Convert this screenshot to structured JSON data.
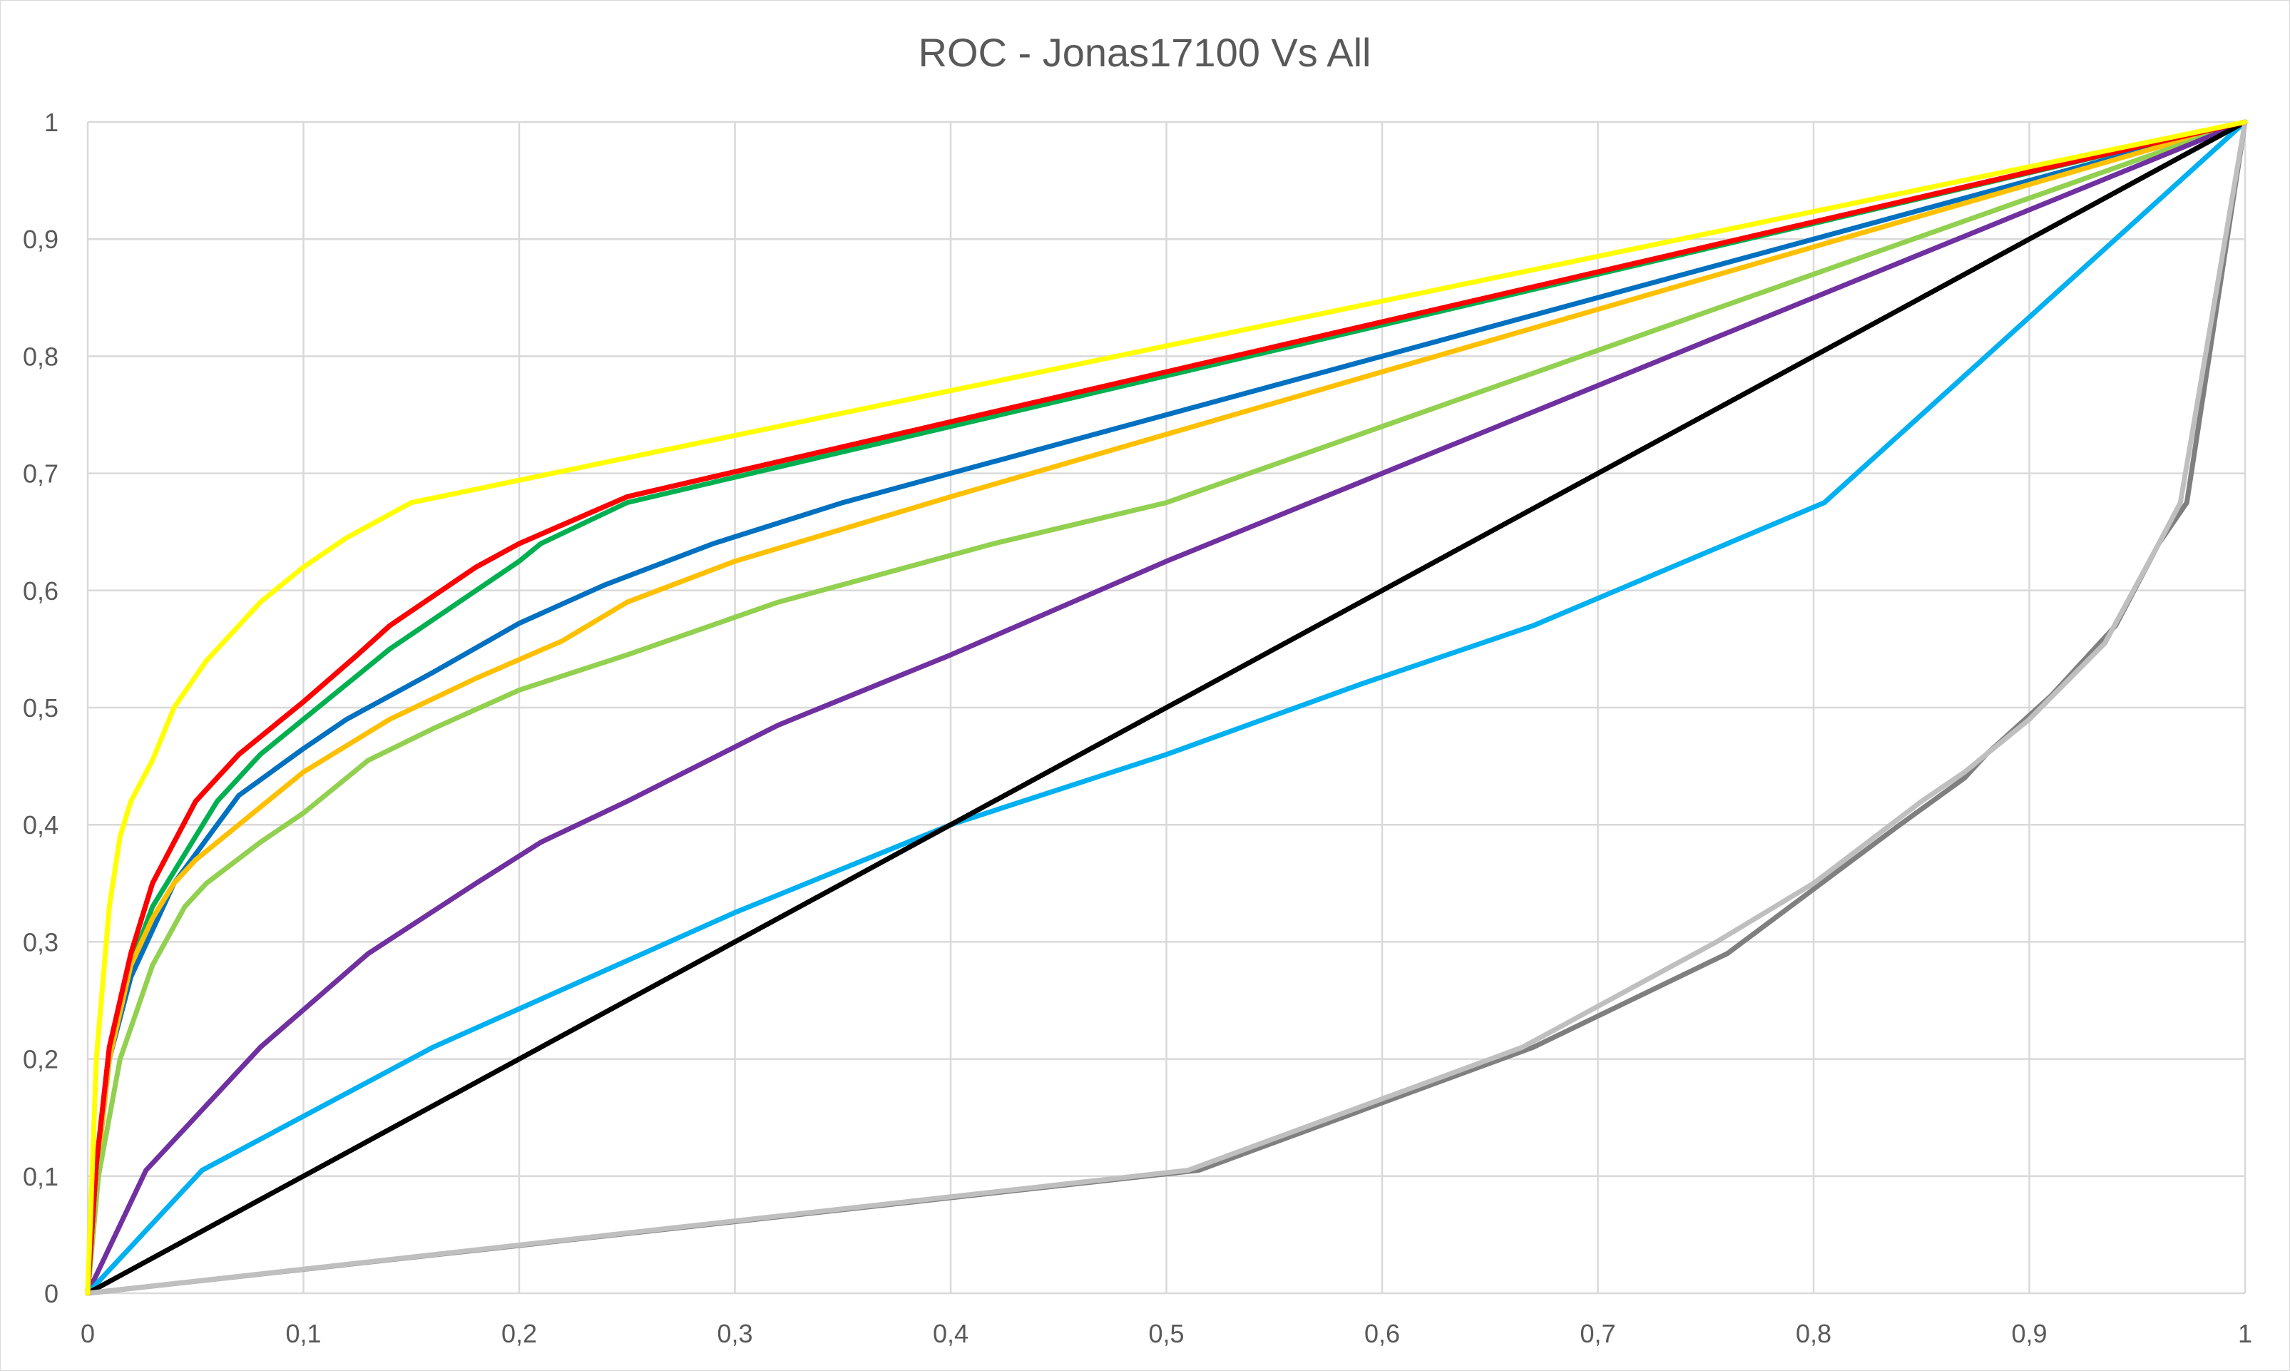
{
  "chart_data": {
    "type": "line",
    "title": "ROC - Jonas17100 Vs All",
    "xlabel": "",
    "ylabel": "",
    "xlim": [
      0,
      1
    ],
    "ylim": [
      0,
      1
    ],
    "x_ticks": [
      "0",
      "0,1",
      "0,2",
      "0,3",
      "0,4",
      "0,5",
      "0,6",
      "0,7",
      "0,8",
      "0,9",
      "1"
    ],
    "y_ticks": [
      "0",
      "0,1",
      "0,2",
      "0,3",
      "0,4",
      "0,5",
      "0,6",
      "0,7",
      "0,8",
      "0,9",
      "1"
    ],
    "grid": true,
    "legend": "none",
    "series": [
      {
        "color": "#00B050",
        "points": [
          [
            0,
            0
          ],
          [
            0.004,
            0.1
          ],
          [
            0.01,
            0.2
          ],
          [
            0.02,
            0.28
          ],
          [
            0.03,
            0.33
          ],
          [
            0.04,
            0.36
          ],
          [
            0.05,
            0.39
          ],
          [
            0.06,
            0.42
          ],
          [
            0.07,
            0.44
          ],
          [
            0.08,
            0.46
          ],
          [
            0.1,
            0.49
          ],
          [
            0.12,
            0.52
          ],
          [
            0.14,
            0.55
          ],
          [
            0.16,
            0.575
          ],
          [
            0.2,
            0.625
          ],
          [
            0.21,
            0.64
          ],
          [
            0.25,
            0.675
          ],
          [
            1,
            1
          ]
        ]
      },
      {
        "color": "#0070C0",
        "points": [
          [
            0,
            0
          ],
          [
            0.004,
            0.1
          ],
          [
            0.01,
            0.2
          ],
          [
            0.02,
            0.27
          ],
          [
            0.03,
            0.31
          ],
          [
            0.04,
            0.35
          ],
          [
            0.05,
            0.375
          ],
          [
            0.06,
            0.4
          ],
          [
            0.07,
            0.425
          ],
          [
            0.1,
            0.465
          ],
          [
            0.12,
            0.49
          ],
          [
            0.16,
            0.53
          ],
          [
            0.2,
            0.572
          ],
          [
            0.24,
            0.605
          ],
          [
            0.29,
            0.64
          ],
          [
            0.35,
            0.675
          ],
          [
            1,
            1
          ]
        ]
      },
      {
        "color": "#FFC000",
        "points": [
          [
            0,
            0
          ],
          [
            0.004,
            0.1
          ],
          [
            0.01,
            0.2
          ],
          [
            0.02,
            0.28
          ],
          [
            0.03,
            0.32
          ],
          [
            0.04,
            0.35
          ],
          [
            0.05,
            0.37
          ],
          [
            0.07,
            0.4
          ],
          [
            0.1,
            0.445
          ],
          [
            0.14,
            0.49
          ],
          [
            0.18,
            0.525
          ],
          [
            0.22,
            0.557
          ],
          [
            0.25,
            0.59
          ],
          [
            0.3,
            0.625
          ],
          [
            0.4,
            0.68
          ],
          [
            1,
            1
          ]
        ]
      },
      {
        "color": "#92D050",
        "points": [
          [
            0,
            0
          ],
          [
            0.005,
            0.1
          ],
          [
            0.015,
            0.2
          ],
          [
            0.03,
            0.28
          ],
          [
            0.045,
            0.33
          ],
          [
            0.055,
            0.35
          ],
          [
            0.08,
            0.385
          ],
          [
            0.1,
            0.41
          ],
          [
            0.13,
            0.455
          ],
          [
            0.16,
            0.482
          ],
          [
            0.2,
            0.515
          ],
          [
            0.25,
            0.545
          ],
          [
            0.32,
            0.59
          ],
          [
            0.42,
            0.64
          ],
          [
            0.5,
            0.675
          ],
          [
            1,
            1
          ]
        ]
      },
      {
        "color": "#7030A0",
        "points": [
          [
            0,
            0
          ],
          [
            0.027,
            0.105
          ],
          [
            0.08,
            0.21
          ],
          [
            0.13,
            0.29
          ],
          [
            0.18,
            0.35
          ],
          [
            0.21,
            0.385
          ],
          [
            0.25,
            0.42
          ],
          [
            0.32,
            0.485
          ],
          [
            0.4,
            0.545
          ],
          [
            0.5,
            0.625
          ],
          [
            1,
            1
          ]
        ]
      },
      {
        "color": "#00B0F0",
        "points": [
          [
            0,
            0
          ],
          [
            0.053,
            0.105
          ],
          [
            0.16,
            0.21
          ],
          [
            0.3,
            0.325
          ],
          [
            0.4,
            0.4
          ],
          [
            0.5,
            0.46
          ],
          [
            0.59,
            0.52
          ],
          [
            0.67,
            0.57
          ],
          [
            0.76,
            0.64
          ],
          [
            0.805,
            0.675
          ],
          [
            1,
            1
          ]
        ]
      },
      {
        "color": "#000000",
        "points": [
          [
            0,
            0
          ],
          [
            1,
            1
          ]
        ]
      },
      {
        "color": "#7F7F7F",
        "points": [
          [
            0,
            0
          ],
          [
            0.515,
            0.105
          ],
          [
            0.67,
            0.21
          ],
          [
            0.76,
            0.29
          ],
          [
            0.8,
            0.345
          ],
          [
            0.84,
            0.4
          ],
          [
            0.87,
            0.44
          ],
          [
            0.88,
            0.46
          ],
          [
            0.91,
            0.51
          ],
          [
            0.94,
            0.57
          ],
          [
            0.96,
            0.64
          ],
          [
            0.973,
            0.675
          ],
          [
            1,
            1
          ]
        ]
      },
      {
        "color": "#BFBFBF",
        "points": [
          [
            0,
            0
          ],
          [
            0.51,
            0.105
          ],
          [
            0.665,
            0.21
          ],
          [
            0.755,
            0.3
          ],
          [
            0.8,
            0.35
          ],
          [
            0.85,
            0.42
          ],
          [
            0.87,
            0.445
          ],
          [
            0.9,
            0.49
          ],
          [
            0.935,
            0.555
          ],
          [
            0.96,
            0.64
          ],
          [
            0.97,
            0.675
          ],
          [
            1,
            1
          ]
        ]
      },
      {
        "color": "#C00000",
        "points": [
          [
            0,
            0
          ],
          [
            0.004,
            0.11
          ],
          [
            0.01,
            0.21
          ],
          [
            0.02,
            0.29
          ],
          [
            0.03,
            0.35
          ],
          [
            0.04,
            0.385
          ],
          [
            0.05,
            0.42
          ],
          [
            0.06,
            0.44
          ],
          [
            0.07,
            0.46
          ],
          [
            0.09,
            0.49
          ],
          [
            0.1,
            0.505
          ],
          [
            0.125,
            0.545
          ],
          [
            0.14,
            0.57
          ],
          [
            0.16,
            0.595
          ],
          [
            0.18,
            0.62
          ],
          [
            0.2,
            0.64
          ],
          [
            0.25,
            0.68
          ],
          [
            1,
            1
          ]
        ]
      },
      {
        "color": "#FF0000",
        "points": [
          [
            0,
            0
          ],
          [
            0.004,
            0.11
          ],
          [
            0.01,
            0.21
          ],
          [
            0.02,
            0.29
          ],
          [
            0.03,
            0.35
          ],
          [
            0.04,
            0.385
          ],
          [
            0.05,
            0.42
          ],
          [
            0.06,
            0.44
          ],
          [
            0.07,
            0.46
          ],
          [
            0.09,
            0.49
          ],
          [
            0.1,
            0.505
          ],
          [
            0.125,
            0.545
          ],
          [
            0.14,
            0.57
          ],
          [
            0.16,
            0.595
          ],
          [
            0.18,
            0.62
          ],
          [
            0.2,
            0.64
          ],
          [
            0.25,
            0.68
          ],
          [
            1,
            1
          ]
        ]
      },
      {
        "color": "#FFFF00",
        "points": [
          [
            0,
            0
          ],
          [
            0.004,
            0.2
          ],
          [
            0.01,
            0.33
          ],
          [
            0.015,
            0.39
          ],
          [
            0.02,
            0.42
          ],
          [
            0.03,
            0.455
          ],
          [
            0.04,
            0.5
          ],
          [
            0.055,
            0.54
          ],
          [
            0.07,
            0.57
          ],
          [
            0.08,
            0.59
          ],
          [
            0.1,
            0.62
          ],
          [
            0.12,
            0.645
          ],
          [
            0.15,
            0.675
          ],
          [
            1,
            1
          ]
        ]
      }
    ]
  }
}
